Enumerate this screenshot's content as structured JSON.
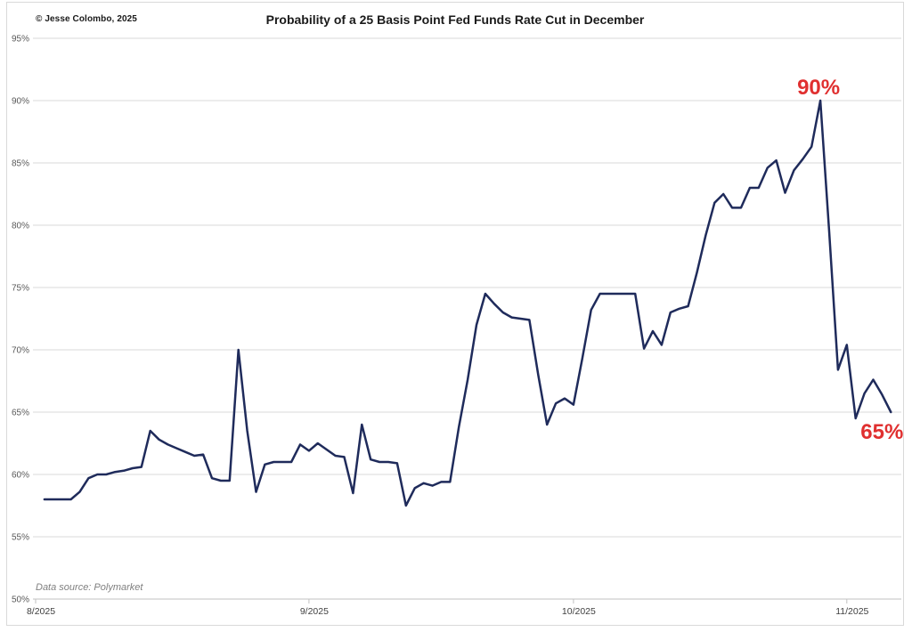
{
  "header": {
    "copyright": "© Jesse Colombo, 2025"
  },
  "footer": {
    "data_source": "Data source: Polymarket"
  },
  "colors": {
    "line": "#1f2b5b",
    "annotation": "#e03030",
    "gridline": "#d9d9d9",
    "axis_line": "#c2c2c2",
    "y_label_text": "#595959",
    "x_label_text": "#404040",
    "border": "#d9d9d9"
  },
  "chart_data": {
    "type": "line",
    "title": "Probability of a 25 Basis Point Fed Funds Rate Cut in December",
    "xlabel": "",
    "ylabel": "",
    "ylim": [
      50,
      95
    ],
    "grid": "horizontal",
    "legend": "none",
    "y_ticks": [
      "95%",
      "90%",
      "85%",
      "80%",
      "75%",
      "70%",
      "65%",
      "60%",
      "55%",
      "50%"
    ],
    "x_ticks": [
      "8/2025",
      "9/2025",
      "10/2025",
      "11/2025"
    ],
    "annotations": [
      {
        "label": "90%",
        "date": "10/29",
        "value": 90,
        "position": "above"
      },
      {
        "label": "65%",
        "date": "11/6",
        "value": 65,
        "position": "below"
      }
    ],
    "series": [
      {
        "name": "Probability of a 25 bp December Fed rate cut",
        "points": [
          [
            "8/2",
            58
          ],
          [
            "8/3",
            58
          ],
          [
            "8/4",
            58
          ],
          [
            "8/5",
            58
          ],
          [
            "8/6",
            58.6
          ],
          [
            "8/7",
            59.7
          ],
          [
            "8/8",
            60
          ],
          [
            "8/9",
            60
          ],
          [
            "8/10",
            60.2
          ],
          [
            "8/11",
            60.3
          ],
          [
            "8/12",
            60.5
          ],
          [
            "8/13",
            60.6
          ],
          [
            "8/14",
            63.5
          ],
          [
            "8/15",
            62.8
          ],
          [
            "8/16",
            62.4
          ],
          [
            "8/17",
            62.1
          ],
          [
            "8/18",
            61.8
          ],
          [
            "8/19",
            61.5
          ],
          [
            "8/20",
            61.6
          ],
          [
            "8/21",
            59.7
          ],
          [
            "8/22",
            59.5
          ],
          [
            "8/23",
            59.5
          ],
          [
            "8/24",
            70
          ],
          [
            "8/25",
            63.5
          ],
          [
            "8/26",
            58.6
          ],
          [
            "8/27",
            60.8
          ],
          [
            "8/28",
            61
          ],
          [
            "8/29",
            61
          ],
          [
            "8/30",
            61
          ],
          [
            "8/31",
            62.4
          ],
          [
            "9/1",
            61.9
          ],
          [
            "9/2",
            62.5
          ],
          [
            "9/3",
            62
          ],
          [
            "9/4",
            61.5
          ],
          [
            "9/5",
            61.4
          ],
          [
            "9/6",
            58.5
          ],
          [
            "9/7",
            64
          ],
          [
            "9/8",
            61.2
          ],
          [
            "9/9",
            61
          ],
          [
            "9/10",
            61
          ],
          [
            "9/11",
            60.9
          ],
          [
            "9/12",
            57.5
          ],
          [
            "9/13",
            58.9
          ],
          [
            "9/14",
            59.3
          ],
          [
            "9/15",
            59.1
          ],
          [
            "9/16",
            59.4
          ],
          [
            "9/17",
            59.4
          ],
          [
            "9/18",
            63.8
          ],
          [
            "9/19",
            67.6
          ],
          [
            "9/20",
            72
          ],
          [
            "9/21",
            74.5
          ],
          [
            "9/22",
            73.7
          ],
          [
            "9/23",
            73
          ],
          [
            "9/24",
            72.6
          ],
          [
            "9/25",
            72.5
          ],
          [
            "9/26",
            72.4
          ],
          [
            "9/27",
            68
          ],
          [
            "9/28",
            64
          ],
          [
            "9/29",
            65.7
          ],
          [
            "9/30",
            66.1
          ],
          [
            "10/1",
            65.6
          ],
          [
            "10/2",
            69.3
          ],
          [
            "10/3",
            73.2
          ],
          [
            "10/4",
            74.5
          ],
          [
            "10/5",
            74.5
          ],
          [
            "10/6",
            74.5
          ],
          [
            "10/7",
            74.5
          ],
          [
            "10/8",
            74.5
          ],
          [
            "10/9",
            70.1
          ],
          [
            "10/10",
            71.5
          ],
          [
            "10/11",
            70.4
          ],
          [
            "10/12",
            73
          ],
          [
            "10/13",
            73.3
          ],
          [
            "10/14",
            73.5
          ],
          [
            "10/15",
            76.2
          ],
          [
            "10/16",
            79.2
          ],
          [
            "10/17",
            81.8
          ],
          [
            "10/18",
            82.5
          ],
          [
            "10/19",
            81.4
          ],
          [
            "10/20",
            81.4
          ],
          [
            "10/21",
            83
          ],
          [
            "10/22",
            83
          ],
          [
            "10/23",
            84.6
          ],
          [
            "10/24",
            85.2
          ],
          [
            "10/25",
            82.6
          ],
          [
            "10/26",
            84.4
          ],
          [
            "10/27",
            85.3
          ],
          [
            "10/28",
            86.3
          ],
          [
            "10/29",
            90
          ],
          [
            "10/30",
            79.5
          ],
          [
            "10/31",
            68.4
          ],
          [
            "11/1",
            70.4
          ],
          [
            "11/2",
            64.5
          ],
          [
            "11/3",
            66.5
          ],
          [
            "11/4",
            67.6
          ],
          [
            "11/5",
            66.4
          ],
          [
            "11/6",
            65
          ]
        ]
      }
    ]
  }
}
